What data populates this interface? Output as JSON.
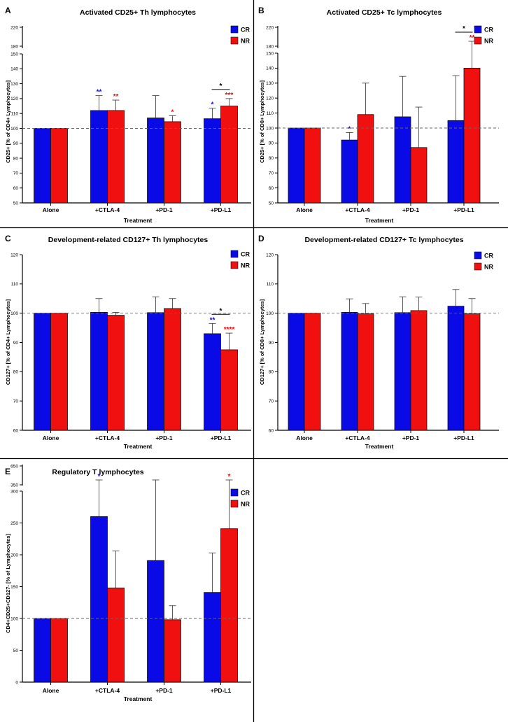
{
  "chart_data": [
    {
      "letter": "A",
      "type": "bar",
      "title": "Activated CD25+ Th lymphocytes",
      "xlabel": "Treatment",
      "ylabel": "CD25+ [% of CD4+ Lymphocytes]",
      "categories": [
        "Alone",
        "+CTLA-4",
        "+PD-1",
        "+PD-L1"
      ],
      "ylim": [
        50,
        150
      ],
      "yticks": [
        50,
        60,
        70,
        80,
        90,
        100,
        110,
        120,
        130,
        140,
        150
      ],
      "break_ticks": [
        180,
        220
      ],
      "reference_line": 100,
      "legend_position": "top-right",
      "series": [
        {
          "name": "CR",
          "color": "#0a0ae6",
          "values": [
            100,
            112,
            107,
            106.5
          ],
          "errors": [
            0,
            10,
            15,
            7
          ],
          "sig": [
            "",
            "**",
            "",
            "*"
          ]
        },
        {
          "name": "NR",
          "color": "#f01010",
          "values": [
            100,
            112,
            104.5,
            115
          ],
          "errors": [
            0,
            7,
            4,
            5
          ],
          "sig": [
            "",
            "**",
            "*",
            "***"
          ]
        }
      ],
      "comparisons": [
        {
          "category": 3,
          "label": "*"
        }
      ]
    },
    {
      "letter": "B",
      "type": "bar",
      "title": "Activated CD25+ Tc lymphocytes",
      "xlabel": "Treatment",
      "ylabel": "CD25+ [% of CD8+ Lymphocytes]",
      "categories": [
        "Alone",
        "+CTLA-4",
        "+PD-1",
        "+PD-L1"
      ],
      "ylim": [
        50,
        150
      ],
      "yticks": [
        50,
        60,
        70,
        80,
        90,
        100,
        110,
        120,
        130,
        140,
        150
      ],
      "break_ticks": [
        180,
        220
      ],
      "reference_line": 100,
      "legend_position": "top-right",
      "series": [
        {
          "name": "CR",
          "color": "#0a0ae6",
          "values": [
            100,
            92,
            107.5,
            105
          ],
          "errors": [
            0,
            5,
            27,
            30
          ],
          "sig": [
            "",
            "*",
            "",
            ""
          ]
        },
        {
          "name": "NR",
          "color": "#f01010",
          "values": [
            100,
            109,
            87,
            140
          ],
          "errors": [
            0,
            21,
            27,
            55
          ],
          "sig": [
            "",
            "",
            "",
            "**"
          ]
        }
      ],
      "comparisons": [
        {
          "category": 3,
          "label": "*"
        }
      ]
    },
    {
      "letter": "C",
      "type": "bar",
      "title": "Development-related CD127+ Th lymphocytes",
      "xlabel": "Treatment",
      "ylabel": "CD127+ [% of CD4+ Lymphocytes]",
      "categories": [
        "Alone",
        "+CTLA-4",
        "+PD-1",
        "+PD-L1"
      ],
      "ylim": [
        60,
        120
      ],
      "yticks": [
        60,
        70,
        80,
        90,
        100,
        110,
        120
      ],
      "reference_line": 100,
      "legend_position": "top-right",
      "series": [
        {
          "name": "CR",
          "color": "#0a0ae6",
          "values": [
            100,
            100.3,
            100.2,
            93
          ],
          "errors": [
            0,
            4.7,
            5.4,
            3.5
          ],
          "sig": [
            "",
            "",
            "",
            "**"
          ]
        },
        {
          "name": "NR",
          "color": "#f01010",
          "values": [
            100,
            99.3,
            101.6,
            87.5
          ],
          "errors": [
            0,
            1,
            3.4,
            5.7
          ],
          "sig": [
            "",
            "",
            "",
            "****"
          ]
        }
      ],
      "comparisons": [
        {
          "category": 3,
          "label": "*"
        }
      ]
    },
    {
      "letter": "D",
      "type": "bar",
      "title": "Development-related CD127+ Tc lymphocytes",
      "xlabel": "Treatment",
      "ylabel": "CD127+ [% of CD8+ Lymphocytes]",
      "categories": [
        "Alone",
        "+CTLA-4",
        "+PD-1",
        "+PD-L1"
      ],
      "ylim": [
        60,
        120
      ],
      "yticks": [
        60,
        70,
        80,
        90,
        100,
        110,
        120
      ],
      "reference_line": 100,
      "legend_position": "top-right",
      "series": [
        {
          "name": "CR",
          "color": "#0a0ae6",
          "values": [
            100,
            100.3,
            100.2,
            102.4
          ],
          "errors": [
            0,
            4.6,
            5.4,
            5.7
          ],
          "sig": [
            "",
            "",
            "",
            ""
          ]
        },
        {
          "name": "NR",
          "color": "#f01010",
          "values": [
            100,
            99.8,
            100.9,
            99.8
          ],
          "errors": [
            0,
            3.5,
            4.6,
            5.2
          ],
          "sig": [
            "",
            "",
            "",
            ""
          ]
        }
      ],
      "comparisons": []
    },
    {
      "letter": "E",
      "type": "bar",
      "title": "Regulatory T lymphocytes",
      "xlabel": "Treatment",
      "ylabel": "CD4+CD25+CD127- [% of Lymphocytes]",
      "categories": [
        "Alone",
        "+CTLA-4",
        "+PD-1",
        "+PD-L1"
      ],
      "ylim": [
        0,
        300
      ],
      "yticks": [
        0,
        50,
        100,
        150,
        200,
        250,
        300
      ],
      "break_ticks": [
        350,
        650
      ],
      "reference_line": 100,
      "legend_position": "top-right",
      "series": [
        {
          "name": "CR",
          "color": "#0a0ae6",
          "values": [
            100,
            260,
            191,
            141
          ],
          "errors": [
            0,
            175,
            170,
            62
          ],
          "sig": [
            "",
            "*",
            "",
            ""
          ]
        },
        {
          "name": "NR",
          "color": "#f01010",
          "values": [
            100,
            148,
            98,
            241
          ],
          "errors": [
            0,
            58,
            22,
            122
          ],
          "sig": [
            "",
            "",
            "",
            "*"
          ]
        }
      ],
      "comparisons": []
    }
  ]
}
